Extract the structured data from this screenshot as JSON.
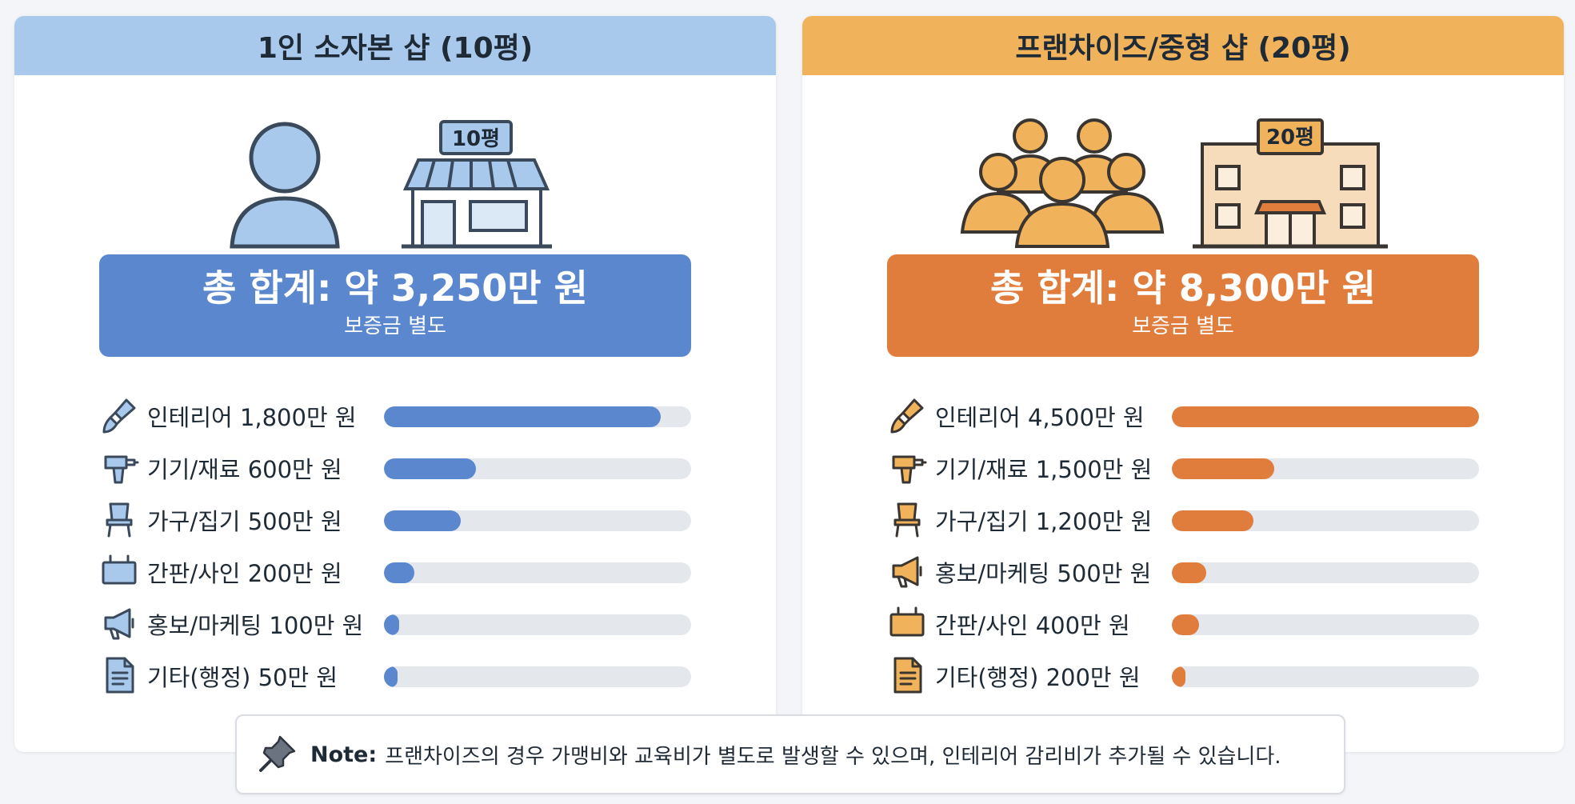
{
  "colors": {
    "left_header": "#a9c9ec",
    "left_accent": "#5b87cf",
    "left_icon_fill": "#a9c9ec",
    "left_icon_stroke": "#3a4a5c",
    "right_header": "#f0b35b",
    "right_accent": "#e07d3c",
    "right_icon_fill": "#f0b35b",
    "right_icon_stroke": "#3a3530"
  },
  "left": {
    "title": "1인 소자본 샵 (10평)",
    "sign_label": "10평",
    "total_main": "총 합계: 약 3,250만 원",
    "total_sub": "보증금 별도"
  },
  "right": {
    "title": "프랜차이즈/중형 샵 (20평)",
    "sign_label": "20평",
    "total_main": "총 합계: 약 8,300만 원",
    "total_sub": "보증금 별도"
  },
  "note": {
    "label": "Note:",
    "text": "프랜차이즈의 경우 가맹비와 교육비가 별도로 발생할 수 있으며, 인테리어 감리비가 추가될 수 있습니다."
  },
  "chart_data": [
    {
      "type": "bar",
      "orientation": "horizontal",
      "title": "1인 소자본 샵 (10평)",
      "unit": "만 원",
      "xlim": [
        0,
        2000
      ],
      "categories": [
        "인테리어",
        "기기/재료",
        "가구/집기",
        "간판/사인",
        "홍보/마케팅",
        "기타(행정)"
      ],
      "labels": [
        "인테리어 1,800만 원",
        "기기/재료  600만 원",
        "가구/집기  500만 원",
        "간판/사인  200만 원",
        "홍보/마케팅 100만 원",
        "기타(행정) 50만 원"
      ],
      "icons": [
        "paintbrush-icon",
        "drill-icon",
        "chair-icon",
        "signboard-icon",
        "megaphone-icon",
        "document-icon"
      ],
      "values": [
        1800,
        600,
        500,
        200,
        100,
        50
      ]
    },
    {
      "type": "bar",
      "orientation": "horizontal",
      "title": "프랜차이즈/중형 샵 (20평)",
      "unit": "만 원",
      "xlim": [
        0,
        4500
      ],
      "categories": [
        "인테리어",
        "기기/재료",
        "가구/집기",
        "홍보/마케팅",
        "간판/사인",
        "기타(행정)"
      ],
      "labels": [
        "인테리어  4,500만 원",
        "기기/재료 1,500만 원",
        "가구/집기 1,200만 원",
        "홍보/마케팅 500만 원",
        "간판/사인 400만 원",
        "기타(행정) 200만 원"
      ],
      "icons": [
        "paintbrush-icon",
        "drill-icon",
        "chair-icon",
        "megaphone-icon",
        "signboard-icon",
        "document-icon"
      ],
      "values": [
        4500,
        1500,
        1200,
        500,
        400,
        200
      ]
    }
  ]
}
